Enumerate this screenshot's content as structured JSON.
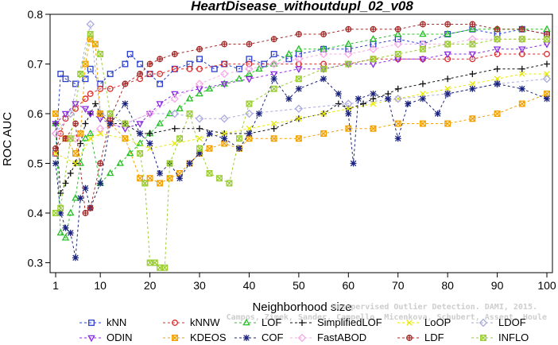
{
  "chart_data": {
    "type": "line",
    "title": "HeartDisease_withoutdupl_02_v08",
    "xlabel": "Neighborhood size",
    "ylabel": "ROC AUC",
    "xlim": [
      1,
      100
    ],
    "ylim": [
      0.28,
      0.8
    ],
    "xticks": [
      1,
      10,
      20,
      30,
      40,
      50,
      60,
      70,
      80,
      90,
      100
    ],
    "yticks": [
      0.3,
      0.4,
      0.5,
      0.6,
      0.7,
      0.8
    ],
    "xtick_labels": [
      "1",
      "10",
      "20",
      "30",
      "40",
      "50",
      "60",
      "70",
      "80",
      "90",
      "100"
    ],
    "ytick_labels": [
      "0.3",
      "0.4",
      "0.5",
      "0.6",
      "0.7",
      "0.8"
    ],
    "grid": false,
    "legend_position": "bottom",
    "watermark_lines": [
      "Unsupervised Outlier Detection. DAMI, 2015.",
      "Campos, Zimek, Sander, Campello, Micenkova, Schubert, Assent, Houle"
    ],
    "series": [
      {
        "name": "kNN",
        "color": "#2b3fcc",
        "marker": "square",
        "x": [
          1,
          2,
          3,
          5,
          7,
          8,
          10,
          12,
          15,
          16,
          18,
          20,
          22,
          25,
          28,
          30,
          33,
          35,
          38,
          40,
          43,
          45,
          48,
          50,
          55,
          60,
          65,
          70,
          75,
          80,
          85,
          90,
          95,
          100
        ],
        "y": [
          0.52,
          0.68,
          0.67,
          0.66,
          0.67,
          0.69,
          0.66,
          0.68,
          0.7,
          0.72,
          0.7,
          0.68,
          0.66,
          0.69,
          0.7,
          0.71,
          0.69,
          0.7,
          0.69,
          0.71,
          0.7,
          0.72,
          0.71,
          0.72,
          0.73,
          0.73,
          0.74,
          0.75,
          0.74,
          0.76,
          0.77,
          0.76,
          0.77,
          0.76
        ]
      },
      {
        "name": "kNNW",
        "color": "#dc2c2c",
        "marker": "circle",
        "x": [
          1,
          2,
          3,
          5,
          7,
          8,
          10,
          12,
          15,
          18,
          20,
          22,
          25,
          28,
          30,
          35,
          40,
          45,
          50,
          55,
          60,
          65,
          70,
          75,
          80,
          85,
          90,
          95,
          100
        ],
        "y": [
          0.52,
          0.56,
          0.59,
          0.61,
          0.63,
          0.64,
          0.65,
          0.65,
          0.66,
          0.67,
          0.68,
          0.68,
          0.69,
          0.69,
          0.69,
          0.7,
          0.7,
          0.7,
          0.7,
          0.7,
          0.7,
          0.71,
          0.71,
          0.71,
          0.71,
          0.71,
          0.72,
          0.72,
          0.72
        ]
      },
      {
        "name": "LOF",
        "color": "#26c026",
        "marker": "triangle",
        "x": [
          1,
          2,
          3,
          4,
          5,
          6,
          7,
          8,
          10,
          12,
          14,
          16,
          18,
          20,
          22,
          24,
          26,
          28,
          30,
          32,
          35,
          38,
          40,
          42,
          45,
          48,
          50,
          55,
          60,
          65,
          70,
          75,
          80,
          85,
          90,
          95,
          100
        ],
        "y": [
          0.58,
          0.36,
          0.35,
          0.4,
          0.43,
          0.5,
          0.55,
          0.56,
          0.46,
          0.48,
          0.5,
          0.52,
          0.54,
          0.56,
          0.58,
          0.6,
          0.61,
          0.63,
          0.64,
          0.65,
          0.66,
          0.67,
          0.68,
          0.69,
          0.7,
          0.72,
          0.73,
          0.73,
          0.74,
          0.75,
          0.76,
          0.76,
          0.76,
          0.77,
          0.77,
          0.77,
          0.77
        ]
      },
      {
        "name": "SimplifiedLOF",
        "color": "#111111",
        "marker": "plus",
        "x": [
          1,
          2,
          3,
          4,
          5,
          6,
          7,
          8,
          9,
          10,
          12,
          15,
          18,
          20,
          25,
          30,
          35,
          40,
          45,
          50,
          55,
          58,
          60,
          63,
          65,
          68,
          70,
          75,
          80,
          85,
          90,
          95,
          100
        ],
        "y": [
          0.58,
          0.44,
          0.46,
          0.48,
          0.5,
          0.54,
          0.58,
          0.6,
          0.62,
          0.6,
          0.58,
          0.58,
          0.56,
          0.56,
          0.57,
          0.57,
          0.56,
          0.56,
          0.57,
          0.59,
          0.6,
          0.62,
          0.61,
          0.62,
          0.63,
          0.64,
          0.65,
          0.66,
          0.67,
          0.68,
          0.69,
          0.69,
          0.7
        ]
      },
      {
        "name": "LoOP",
        "color": "#e8e800",
        "marker": "x",
        "x": [
          1,
          5,
          8,
          10,
          15,
          20,
          25,
          30,
          35,
          40,
          45,
          50,
          55,
          60,
          65,
          70,
          75,
          80,
          85,
          90,
          95,
          100
        ],
        "y": [
          0.52,
          0.5,
          0.55,
          0.56,
          0.55,
          0.53,
          0.54,
          0.55,
          0.56,
          0.57,
          0.58,
          0.59,
          0.6,
          0.61,
          0.62,
          0.63,
          0.64,
          0.65,
          0.66,
          0.67,
          0.68,
          0.68
        ]
      },
      {
        "name": "LDOF",
        "color": "#aaaadd",
        "marker": "diamond",
        "x": [
          1,
          4,
          8,
          10,
          15,
          20,
          25,
          30,
          35,
          40,
          50,
          60,
          70,
          80,
          90,
          100
        ],
        "y": [
          0.56,
          0.6,
          0.78,
          0.6,
          0.58,
          0.6,
          0.6,
          0.59,
          0.59,
          0.6,
          0.61,
          0.62,
          0.63,
          0.64,
          0.66,
          0.67
        ]
      },
      {
        "name": "ODIN",
        "color": "#8a2be2",
        "marker": "triangle-down",
        "x": [
          1,
          3,
          5,
          7,
          8,
          10,
          12,
          15,
          18,
          20,
          22,
          25,
          30,
          35,
          40,
          45,
          50,
          55,
          60,
          65,
          70,
          75,
          80,
          85,
          90,
          95,
          100
        ],
        "y": [
          0.58,
          0.6,
          0.62,
          0.61,
          0.6,
          0.59,
          0.58,
          0.57,
          0.58,
          0.6,
          0.62,
          0.64,
          0.65,
          0.66,
          0.67,
          0.68,
          0.69,
          0.69,
          0.7,
          0.7,
          0.71,
          0.71,
          0.72,
          0.72,
          0.73,
          0.73,
          0.74
        ]
      },
      {
        "name": "KDEOS",
        "color": "#f2a000",
        "marker": "square-x",
        "x": [
          1,
          3,
          5,
          6,
          7,
          8,
          9,
          10,
          12,
          15,
          18,
          19,
          20,
          22,
          24,
          26,
          28,
          30,
          32,
          35,
          38,
          40,
          45,
          50,
          55,
          60,
          65,
          70,
          75,
          80,
          85,
          90,
          95,
          100
        ],
        "y": [
          0.6,
          0.55,
          0.52,
          0.56,
          0.7,
          0.75,
          0.74,
          0.6,
          0.58,
          0.55,
          0.47,
          0.46,
          0.47,
          0.46,
          0.47,
          0.48,
          0.5,
          0.52,
          0.53,
          0.54,
          0.53,
          0.55,
          0.55,
          0.55,
          0.56,
          0.57,
          0.57,
          0.58,
          0.58,
          0.58,
          0.59,
          0.6,
          0.62,
          0.64
        ]
      },
      {
        "name": "COF",
        "color": "#1a237e",
        "marker": "asterisk",
        "x": [
          1,
          2,
          3,
          4,
          5,
          6,
          7,
          8,
          10,
          12,
          15,
          18,
          20,
          22,
          24,
          26,
          28,
          30,
          32,
          35,
          38,
          40,
          42,
          45,
          48,
          50,
          55,
          58,
          60,
          61,
          62,
          65,
          68,
          70,
          72,
          75,
          78,
          80,
          85,
          90,
          95,
          100
        ],
        "y": [
          0.5,
          0.4,
          0.37,
          0.36,
          0.31,
          0.43,
          0.45,
          0.41,
          0.46,
          0.58,
          0.62,
          0.56,
          0.54,
          0.48,
          0.5,
          0.47,
          0.5,
          0.52,
          0.56,
          0.55,
          0.53,
          0.56,
          0.6,
          0.67,
          0.63,
          0.65,
          0.67,
          0.64,
          0.6,
          0.5,
          0.63,
          0.64,
          0.63,
          0.55,
          0.62,
          0.63,
          0.6,
          0.64,
          0.65,
          0.66,
          0.65,
          0.63
        ]
      },
      {
        "name": "FastABOD",
        "color": "#f7a8e8",
        "marker": "diamond",
        "x": [
          1,
          5,
          10,
          15,
          20,
          25,
          30,
          35,
          40,
          45,
          50,
          55,
          60,
          65,
          70,
          75,
          80,
          85,
          90,
          95,
          100
        ],
        "y": [
          0.56,
          0.55,
          0.57,
          0.58,
          0.6,
          0.63,
          0.66,
          0.68,
          0.69,
          0.7,
          0.71,
          0.72,
          0.72,
          0.73,
          0.74,
          0.74,
          0.74,
          0.75,
          0.75,
          0.75,
          0.75
        ]
      },
      {
        "name": "LDF",
        "color": "#a52a2a",
        "marker": "circle-plus",
        "x": [
          1,
          3,
          5,
          7,
          8,
          10,
          12,
          15,
          18,
          20,
          22,
          25,
          30,
          35,
          40,
          45,
          50,
          55,
          60,
          65,
          70,
          75,
          80,
          85,
          90,
          95,
          100
        ],
        "y": [
          0.53,
          0.55,
          0.58,
          0.4,
          0.41,
          0.5,
          0.59,
          0.66,
          0.68,
          0.7,
          0.71,
          0.72,
          0.73,
          0.74,
          0.74,
          0.75,
          0.76,
          0.76,
          0.77,
          0.77,
          0.77,
          0.78,
          0.78,
          0.78,
          0.77,
          0.77,
          0.76
        ]
      },
      {
        "name": "INFLO",
        "color": "#9acd32",
        "marker": "square-x",
        "x": [
          1,
          2,
          4,
          6,
          8,
          10,
          12,
          15,
          18,
          19,
          20,
          21,
          22,
          23,
          24,
          26,
          28,
          30,
          32,
          34,
          36,
          38,
          40,
          45,
          50,
          55,
          60,
          65,
          70,
          75,
          80,
          85,
          90,
          95,
          100
        ],
        "y": [
          0.4,
          0.41,
          0.55,
          0.68,
          0.76,
          0.72,
          0.6,
          0.58,
          0.52,
          0.46,
          0.3,
          0.3,
          0.29,
          0.29,
          0.5,
          0.55,
          0.6,
          0.53,
          0.48,
          0.47,
          0.46,
          0.55,
          0.62,
          0.65,
          0.67,
          0.69,
          0.7,
          0.71,
          0.72,
          0.73,
          0.74,
          0.74,
          0.75,
          0.75,
          0.75
        ]
      }
    ]
  }
}
